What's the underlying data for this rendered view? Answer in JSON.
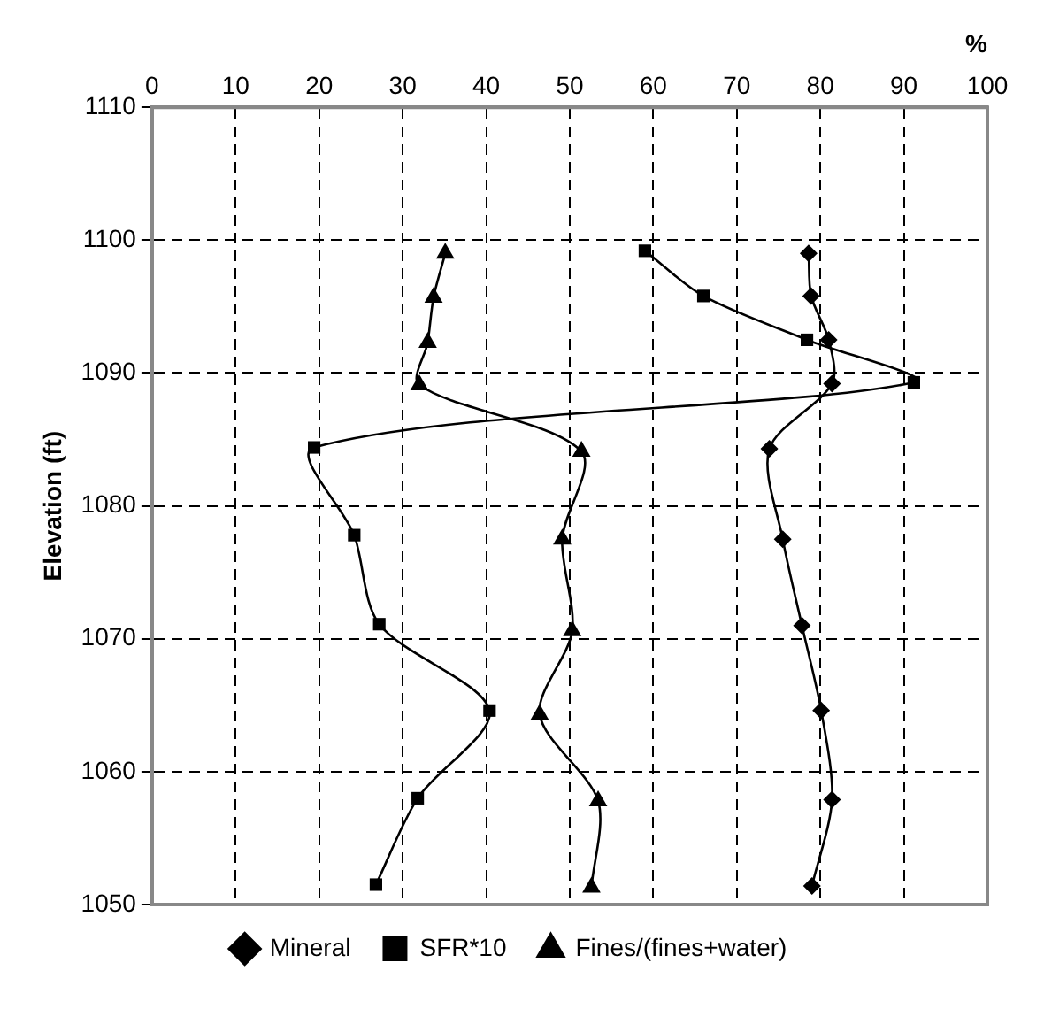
{
  "chart_data": {
    "type": "line",
    "xlabel": "%",
    "ylabel": "Elevation (ft)",
    "xlim": [
      0,
      100
    ],
    "xticks": [
      0,
      10,
      20,
      30,
      40,
      50,
      60,
      70,
      80,
      90,
      100
    ],
    "ylim": [
      1050,
      1110
    ],
    "yticks": [
      1050,
      1060,
      1070,
      1080,
      1090,
      1100,
      1110
    ],
    "grid": true,
    "legend": "bottom",
    "line_style": "solid",
    "series": [
      {
        "name": "Mineral",
        "color": "#000000",
        "marker": "diamond",
        "x": [
          78.6,
          78.9,
          81.0,
          81.4,
          73.9,
          75.5,
          77.8,
          80.1,
          81.4,
          79.0
        ],
        "values": [
          1099.0,
          1095.8,
          1092.5,
          1089.2,
          1084.3,
          1077.5,
          1071.0,
          1064.6,
          1057.9,
          1051.4
        ]
      },
      {
        "name": "SFR*10",
        "color": "#000000",
        "marker": "square",
        "x": [
          59.0,
          66.0,
          78.4,
          91.2,
          19.4,
          24.2,
          27.2,
          40.4,
          31.8,
          26.8
        ],
        "values": [
          1099.2,
          1095.8,
          1092.5,
          1089.3,
          1084.4,
          1077.8,
          1071.1,
          1064.6,
          1058.0,
          1051.5
        ]
      },
      {
        "name": "Fines/(fines+water)",
        "color": "#000000",
        "marker": "triangle",
        "x": [
          35.1,
          33.7,
          33.0,
          32.0,
          51.4,
          49.1,
          50.3,
          46.4,
          53.4,
          52.6
        ],
        "values": [
          1099.0,
          1095.7,
          1092.3,
          1089.1,
          1084.1,
          1077.5,
          1070.6,
          1064.3,
          1057.8,
          1051.3
        ]
      }
    ]
  }
}
